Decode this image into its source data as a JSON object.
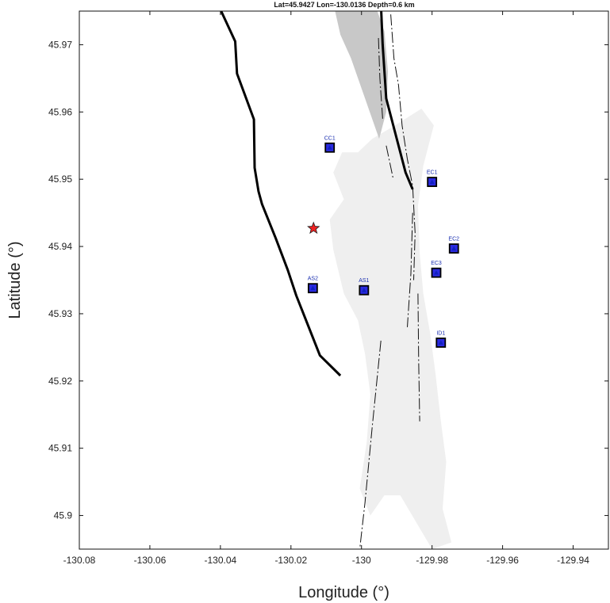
{
  "title": "Lat=45.9427  Lon=-130.0136  Depth=0.6 km",
  "chart_data": {
    "type": "map",
    "xlabel": "Longitude (°)",
    "ylabel": "Latitude (°)",
    "xlim": [
      -130.08,
      -129.93
    ],
    "ylim": [
      45.895,
      45.975
    ],
    "xticks": [
      -130.08,
      -130.06,
      -130.04,
      -130.02,
      -130,
      -129.98,
      -129.96,
      -129.94
    ],
    "xtick_labels": [
      "-130.08",
      "-130.06",
      "-130.04",
      "-130.02",
      "-130",
      "-129.98",
      "-129.96",
      "-129.94"
    ],
    "yticks": [
      45.9,
      45.91,
      45.92,
      45.93,
      45.94,
      45.95,
      45.96,
      45.97
    ],
    "ytick_labels": [
      "45.9",
      "45.91",
      "45.92",
      "45.93",
      "45.94",
      "45.95",
      "45.96",
      "45.97"
    ],
    "stations": [
      {
        "name": "CC1",
        "lon": -130.009,
        "lat": 45.9547
      },
      {
        "name": "EC1",
        "lon": -129.98,
        "lat": 45.9496
      },
      {
        "name": "EC2",
        "lon": -129.9738,
        "lat": 45.9397
      },
      {
        "name": "EC3",
        "lon": -129.9788,
        "lat": 45.9361
      },
      {
        "name": "AS2",
        "lon": -130.0138,
        "lat": 45.9338
      },
      {
        "name": "AS1",
        "lon": -129.9993,
        "lat": 45.9335
      },
      {
        "name": "ID1",
        "lon": -129.9775,
        "lat": 45.9257
      }
    ],
    "event": {
      "lon": -130.0136,
      "lat": 45.9427,
      "depth_km": 0.6
    },
    "caldera_rim_west": [
      [
        -130.0398,
        45.975
      ],
      [
        -130.0358,
        45.9705
      ],
      [
        -130.0353,
        45.9657
      ],
      [
        -130.0305,
        45.9589
      ],
      [
        -130.0303,
        45.9517
      ],
      [
        -130.0292,
        45.9482
      ],
      [
        -130.0282,
        45.9463
      ],
      [
        -130.0243,
        45.9412
      ],
      [
        -130.0209,
        45.9365
      ],
      [
        -130.0185,
        45.9327
      ],
      [
        -130.0118,
        45.9238
      ],
      [
        -130.006,
        45.9208
      ]
    ],
    "caldera_rim_east": [
      [
        -129.9944,
        45.975
      ],
      [
        -129.994,
        45.97
      ],
      [
        -129.993,
        45.962
      ],
      [
        -129.99,
        45.956
      ],
      [
        -129.9875,
        45.951
      ],
      [
        -129.9855,
        45.9485
      ]
    ],
    "fissures": [
      [
        [
          -129.9917,
          45.9745
        ],
        [
          -129.9908,
          45.968
        ],
        [
          -129.9895,
          45.964
        ],
        [
          -129.9885,
          45.958
        ],
        [
          -129.987,
          45.953
        ],
        [
          -129.9855,
          45.949
        ],
        [
          -129.9848,
          45.942
        ],
        [
          -129.9852,
          45.935
        ]
      ],
      [
        [
          -129.9855,
          45.945
        ],
        [
          -129.986,
          45.936
        ],
        [
          -129.987,
          45.928
        ]
      ],
      [
        [
          -129.984,
          45.933
        ],
        [
          -129.9838,
          45.923
        ],
        [
          -129.9835,
          45.914
        ]
      ],
      [
        [
          -129.9945,
          45.926
        ],
        [
          -129.997,
          45.913
        ],
        [
          -129.999,
          45.902
        ],
        [
          -130.0005,
          45.895
        ]
      ],
      [
        [
          -129.9952,
          45.971
        ],
        [
          -129.9948,
          45.965
        ],
        [
          -129.994,
          45.959
        ]
      ],
      [
        [
          -129.993,
          45.955
        ],
        [
          -129.991,
          45.95
        ]
      ]
    ],
    "lava_flows_light": [
      [
        [
          -130.0055,
          45.954
        ],
        [
          -130.001,
          45.954
        ],
        [
          -129.997,
          45.956
        ],
        [
          -129.9905,
          45.958
        ],
        [
          -129.983,
          45.9605
        ],
        [
          -129.9795,
          45.958
        ],
        [
          -129.9825,
          45.952
        ],
        [
          -129.984,
          45.946
        ],
        [
          -129.9835,
          45.939
        ],
        [
          -129.9825,
          45.933
        ],
        [
          -129.9805,
          45.927
        ],
        [
          -129.979,
          45.921
        ],
        [
          -129.9775,
          45.914
        ],
        [
          -129.976,
          45.908
        ],
        [
          -129.977,
          45.901
        ],
        [
          -129.9745,
          45.896
        ],
        [
          -129.98,
          45.895
        ],
        [
          -129.9845,
          45.899
        ],
        [
          -129.989,
          45.903
        ],
        [
          -129.9935,
          45.903
        ],
        [
          -129.9975,
          45.9
        ],
        [
          -130.0005,
          45.904
        ],
        [
          -129.9985,
          45.911
        ],
        [
          -129.9975,
          45.918
        ],
        [
          -129.999,
          45.924
        ],
        [
          -130.001,
          45.929
        ],
        [
          -130.005,
          45.933
        ],
        [
          -130.008,
          45.9395
        ],
        [
          -130.009,
          45.944
        ],
        [
          -130.005,
          45.947
        ],
        [
          -130.008,
          45.951
        ]
      ]
    ],
    "lava_flows_dark": [
      [
        [
          -130.0075,
          45.975
        ],
        [
          -129.9955,
          45.975
        ],
        [
          -129.9935,
          45.972
        ],
        [
          -129.9925,
          45.966
        ],
        [
          -129.993,
          45.96
        ],
        [
          -129.995,
          45.956
        ],
        [
          -129.999,
          45.962
        ],
        [
          -130.003,
          45.968
        ],
        [
          -130.006,
          45.9715
        ]
      ]
    ]
  }
}
